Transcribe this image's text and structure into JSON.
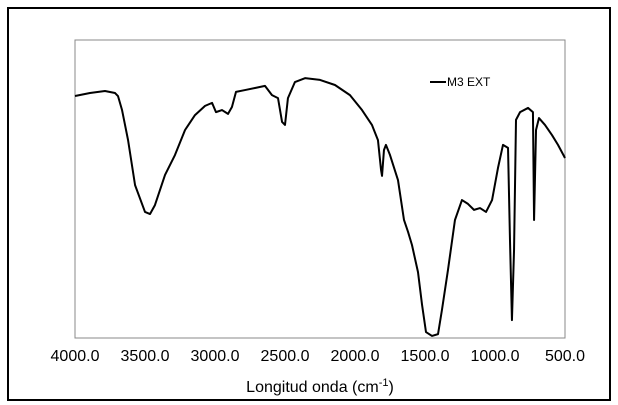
{
  "chart_data": {
    "type": "line",
    "xlabel": {
      "text": "Longitud onda (cm",
      "superscript": "-1",
      "suffix": ")"
    },
    "xlim": [
      4000,
      500
    ],
    "ylim": [
      0,
      100
    ],
    "xticks": [
      {
        "value": 4000,
        "label": "4000.0"
      },
      {
        "value": 3500,
        "label": "3500.0"
      },
      {
        "value": 3000,
        "label": "3000.0"
      },
      {
        "value": 2500,
        "label": "2500.0"
      },
      {
        "value": 2000,
        "label": "2000.0"
      },
      {
        "value": 1500,
        "label": "1500.0"
      },
      {
        "value": 1000,
        "label": "1000.0"
      },
      {
        "value": 500,
        "label": "500.0"
      }
    ],
    "legend": "upper right",
    "x": [
      4000,
      3893,
      3786,
      3714,
      3693,
      3664,
      3621,
      3571,
      3500,
      3464,
      3429,
      3357,
      3286,
      3214,
      3143,
      3071,
      3021,
      2993,
      2950,
      2907,
      2879,
      2850,
      2786,
      2714,
      2643,
      2593,
      2550,
      2521,
      2500,
      2479,
      2429,
      2357,
      2250,
      2143,
      2036,
      1950,
      1879,
      1836,
      1814,
      1807,
      1793,
      1779,
      1750,
      1693,
      1650,
      1621,
      1593,
      1550,
      1521,
      1493,
      1450,
      1407,
      1379,
      1336,
      1286,
      1236,
      1193,
      1150,
      1107,
      1064,
      1021,
      979,
      943,
      907,
      893,
      879,
      864,
      850,
      821,
      764,
      729,
      721,
      707,
      686,
      643,
      593,
      550,
      500
    ],
    "series": [
      {
        "name": "M3 EXT",
        "color": "#000000",
        "values": [
          81.2,
          82.2,
          82.9,
          82.2,
          81.2,
          76.5,
          66.4,
          51.3,
          42.3,
          41.6,
          44.6,
          54.7,
          61.4,
          69.8,
          74.8,
          77.9,
          78.9,
          75.8,
          76.5,
          75.2,
          77.5,
          82.6,
          83.2,
          83.9,
          84.6,
          81.5,
          80.5,
          72.5,
          71.5,
          80.5,
          85.9,
          87.2,
          86.6,
          84.9,
          81.5,
          76.5,
          71.5,
          66.4,
          56.4,
          54.4,
          63.1,
          64.8,
          61.4,
          53.0,
          39.6,
          35.6,
          31.2,
          22.1,
          11.1,
          2.0,
          0.7,
          1.3,
          9.4,
          22.8,
          39.6,
          46.3,
          45.0,
          43.0,
          43.6,
          42.3,
          46.3,
          57.0,
          64.8,
          63.8,
          32.9,
          6.0,
          29.5,
          73.2,
          75.8,
          77.2,
          75.8,
          39.6,
          69.8,
          73.8,
          71.5,
          68.1,
          64.8,
          60.4
        ]
      }
    ]
  }
}
